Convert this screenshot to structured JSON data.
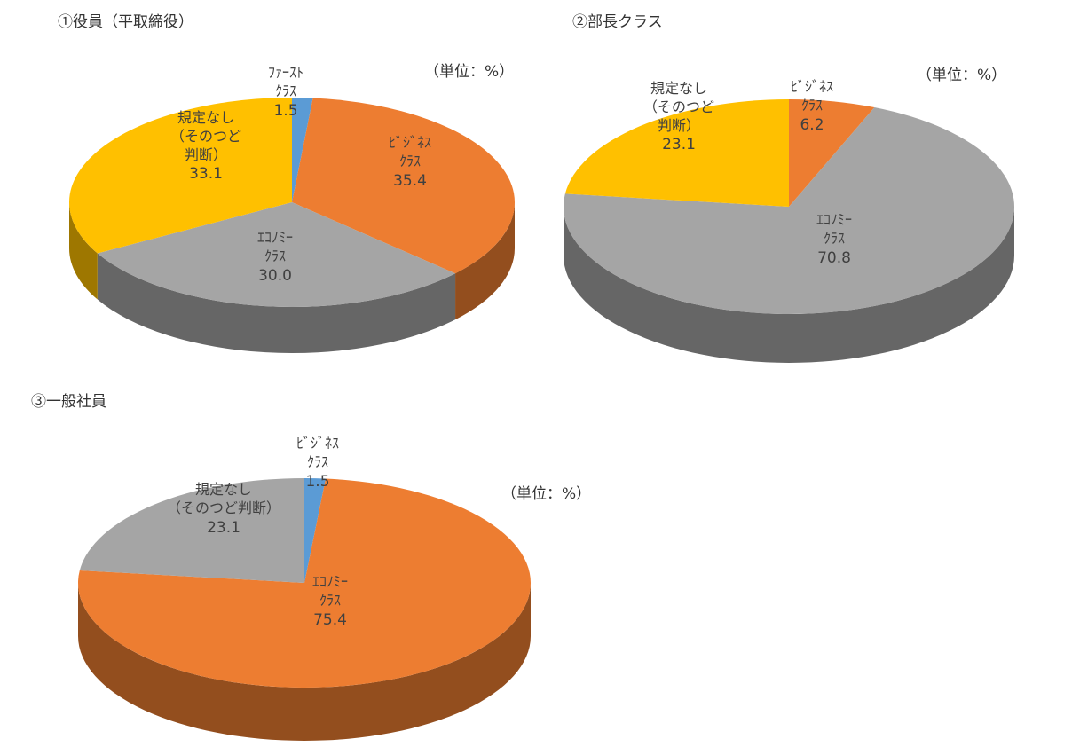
{
  "chart_data": [
    {
      "type": "pie3d",
      "title": "①役員（平取締役）",
      "unit": "（単位：%）",
      "categories": [
        "ﾌｧｰｽﾄ\nｸﾗｽ",
        "ﾋﾞｼﾞﾈｽ\nｸﾗｽ",
        "ｴｺﾉﾐｰ\nｸﾗｽ",
        "規定なし\n（そのつど\n判断）"
      ],
      "values": [
        1.5,
        35.4,
        30.0,
        33.1
      ],
      "value_labels": [
        "1.5",
        "35.4",
        "30.0",
        "33.1"
      ],
      "colors": [
        "#5b9bd5",
        "#ed7d31",
        "#a5a5a5",
        "#ffc000"
      ]
    },
    {
      "type": "pie3d",
      "title": "②部長クラス",
      "unit": "（単位：%）",
      "categories": [
        "ﾋﾞｼﾞﾈｽ\nｸﾗｽ",
        "ｴｺﾉﾐｰ\nｸﾗｽ",
        "規定なし\n（そのつど\n判断）"
      ],
      "values": [
        6.2,
        70.8,
        23.1
      ],
      "colors": [
        "#ed7d31",
        "#a5a5a5",
        "#ffc000"
      ]
    },
    {
      "type": "pie3d",
      "title": "③一般社員",
      "unit": "（単位：%）",
      "categories": [
        "ﾋﾞｼﾞﾈｽ\nｸﾗｽ",
        "ｴｺﾉﾐｰ\nｸﾗｽ",
        "規定なし\n（そのつど判断）"
      ],
      "values": [
        1.5,
        75.4,
        23.1
      ],
      "colors": [
        "#5b9bd5",
        "#ed7d31",
        "#a5a5a5"
      ]
    }
  ]
}
